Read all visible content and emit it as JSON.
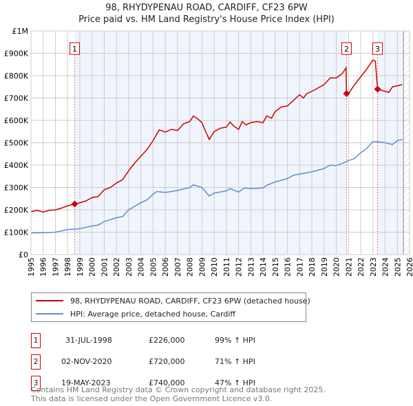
{
  "title": "98, RHYDYPENAU ROAD, CARDIFF, CF23 6PW",
  "subtitle": "Price paid vs. HM Land Registry's House Price Index (HPI)",
  "chart_data": {
    "type": "line",
    "xlim": [
      1995,
      2026
    ],
    "ylim": [
      0,
      1000
    ],
    "x_ticks": [
      "1995",
      "1996",
      "1997",
      "1998",
      "1999",
      "2000",
      "2001",
      "2002",
      "2003",
      "2004",
      "2005",
      "2006",
      "2007",
      "2008",
      "2009",
      "2010",
      "2011",
      "2012",
      "2013",
      "2014",
      "2015",
      "2016",
      "2017",
      "2018",
      "2019",
      "2020",
      "2021",
      "2022",
      "2023",
      "2024",
      "2025",
      "2026"
    ],
    "y_ticks": [
      {
        "v": 0,
        "label": "£0"
      },
      {
        "v": 100,
        "label": "£100K"
      },
      {
        "v": 200,
        "label": "£200K"
      },
      {
        "v": 300,
        "label": "£300K"
      },
      {
        "v": 400,
        "label": "£400K"
      },
      {
        "v": 500,
        "label": "£500K"
      },
      {
        "v": 600,
        "label": "£600K"
      },
      {
        "v": 700,
        "label": "£700K"
      },
      {
        "v": 800,
        "label": "£800K"
      },
      {
        "v": 900,
        "label": "£900K"
      },
      {
        "v": 1000,
        "label": "£1M"
      }
    ],
    "forecast_start": 2025.5,
    "series": [
      {
        "name": "98, RHYDYPENAU ROAD, CARDIFF, CF23 6PW (detached house)",
        "color": "#cc0000",
        "points": [
          [
            1995,
            192
          ],
          [
            1995.5,
            198
          ],
          [
            1996,
            190
          ],
          [
            1996.5,
            198
          ],
          [
            1997,
            200
          ],
          [
            1997.5,
            208
          ],
          [
            1998,
            218
          ],
          [
            1998.58,
            226
          ],
          [
            1999,
            232
          ],
          [
            1999.5,
            240
          ],
          [
            2000,
            255
          ],
          [
            2000.5,
            260
          ],
          [
            2001,
            290
          ],
          [
            2001.5,
            300
          ],
          [
            2002,
            320
          ],
          [
            2002.5,
            335
          ],
          [
            2003,
            375
          ],
          [
            2003.5,
            410
          ],
          [
            2004,
            440
          ],
          [
            2004.5,
            470
          ],
          [
            2005,
            510
          ],
          [
            2005.5,
            558
          ],
          [
            2006,
            548
          ],
          [
            2006.5,
            560
          ],
          [
            2007,
            555
          ],
          [
            2007.5,
            585
          ],
          [
            2008,
            595
          ],
          [
            2008.3,
            620
          ],
          [
            2008.7,
            605
          ],
          [
            2009,
            590
          ],
          [
            2009.3,
            550
          ],
          [
            2009.6,
            515
          ],
          [
            2010,
            550
          ],
          [
            2010.5,
            565
          ],
          [
            2011,
            570
          ],
          [
            2011.3,
            593
          ],
          [
            2011.6,
            575
          ],
          [
            2012,
            560
          ],
          [
            2012.3,
            595
          ],
          [
            2012.6,
            580
          ],
          [
            2013,
            590
          ],
          [
            2013.5,
            595
          ],
          [
            2014,
            590
          ],
          [
            2014.3,
            620
          ],
          [
            2014.7,
            610
          ],
          [
            2015,
            640
          ],
          [
            2015.5,
            660
          ],
          [
            2016,
            665
          ],
          [
            2016.5,
            690
          ],
          [
            2017,
            715
          ],
          [
            2017.3,
            700
          ],
          [
            2017.6,
            720
          ],
          [
            2018,
            730
          ],
          [
            2018.5,
            745
          ],
          [
            2019,
            760
          ],
          [
            2019.5,
            790
          ],
          [
            2020,
            790
          ],
          [
            2020.5,
            810
          ],
          [
            2020.8,
            835
          ],
          [
            2020.84,
            720
          ],
          [
            2021,
            720
          ],
          [
            2021.5,
            760
          ],
          [
            2022,
            795
          ],
          [
            2022.5,
            830
          ],
          [
            2023,
            870
          ],
          [
            2023.2,
            865
          ],
          [
            2023.38,
            740
          ],
          [
            2024,
            730
          ],
          [
            2024.3,
            725
          ],
          [
            2024.6,
            750
          ],
          [
            2025,
            755
          ],
          [
            2025.4,
            760
          ]
        ]
      },
      {
        "name": "HPI: Average price, detached house, Cardiff",
        "color": "#5b8fd6",
        "points": [
          [
            1995,
            97
          ],
          [
            1996,
            98
          ],
          [
            1997,
            100
          ],
          [
            1998,
            112
          ],
          [
            1998.58,
            114
          ],
          [
            1999,
            116
          ],
          [
            2000,
            128
          ],
          [
            2000.5,
            132
          ],
          [
            2001,
            148
          ],
          [
            2002,
            165
          ],
          [
            2002.5,
            170
          ],
          [
            2003,
            200
          ],
          [
            2004,
            232
          ],
          [
            2004.5,
            245
          ],
          [
            2005,
            270
          ],
          [
            2005.3,
            282
          ],
          [
            2006,
            278
          ],
          [
            2006.5,
            282
          ],
          [
            2007,
            287
          ],
          [
            2008,
            300
          ],
          [
            2008.3,
            312
          ],
          [
            2009,
            300
          ],
          [
            2009.6,
            262
          ],
          [
            2010,
            275
          ],
          [
            2011,
            285
          ],
          [
            2011.3,
            295
          ],
          [
            2012,
            280
          ],
          [
            2012.5,
            298
          ],
          [
            2013,
            295
          ],
          [
            2014,
            298
          ],
          [
            2014.3,
            310
          ],
          [
            2015,
            325
          ],
          [
            2016,
            340
          ],
          [
            2016.5,
            355
          ],
          [
            2017,
            360
          ],
          [
            2018,
            370
          ],
          [
            2019,
            385
          ],
          [
            2019.5,
            400
          ],
          [
            2020,
            398
          ],
          [
            2020.5,
            408
          ],
          [
            2021,
            420
          ],
          [
            2021.5,
            430
          ],
          [
            2022,
            455
          ],
          [
            2022.5,
            475
          ],
          [
            2023,
            505
          ],
          [
            2023.4,
            505
          ],
          [
            2024,
            500
          ],
          [
            2024.6,
            492
          ],
          [
            2025,
            510
          ],
          [
            2025.4,
            515
          ]
        ]
      }
    ],
    "sales": [
      {
        "n": "1",
        "x": 1998.58,
        "y": 226,
        "date": "31-JUL-1998",
        "price": "£226,000",
        "hpi": "99% ↑ HPI"
      },
      {
        "n": "2",
        "x": 2020.84,
        "y": 720,
        "date": "02-NOV-2020",
        "price": "£720,000",
        "hpi": "71% ↑ HPI"
      },
      {
        "n": "3",
        "x": 2023.38,
        "y": 740,
        "date": "19-MAY-2023",
        "price": "£740,000",
        "hpi": "47% ↑ HPI"
      }
    ]
  },
  "legend": {
    "property": "98, RHYDYPENAU ROAD, CARDIFF, CF23 6PW (detached house)",
    "hpi": "HPI: Average price, detached house, Cardiff"
  },
  "footer": {
    "line1": "Contains HM Land Registry data © Crown copyright and database right 2025.",
    "line2": "This data is licensed under the Open Government Licence v3.0."
  }
}
